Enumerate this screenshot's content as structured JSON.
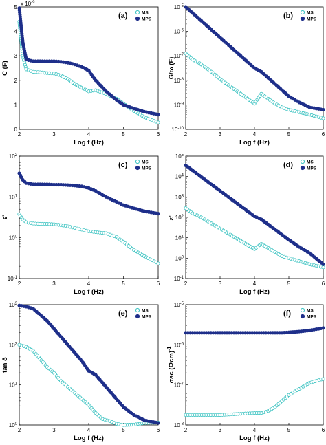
{
  "chart_data": [
    {
      "panel": "(a)",
      "type": "scatter",
      "xlabel": "Log f (Hz)",
      "ylabel": "C (F)",
      "yscale": "linear",
      "multiplier": "x 10^-9",
      "xlim": [
        2,
        6
      ],
      "ylim": [
        0,
        5
      ],
      "xticks": [
        "2",
        "3",
        "4",
        "5",
        "6"
      ],
      "yticks": [
        "0",
        "1",
        "2",
        "3",
        "4",
        "5"
      ],
      "legend": "top-right",
      "series": [
        {
          "name": "MS",
          "marker": "open-circle",
          "color": "#39c2c0",
          "points": [
            [
              2.0,
              4.4
            ],
            [
              2.1,
              3.0
            ],
            [
              2.2,
              2.45
            ],
            [
              2.4,
              2.35
            ],
            [
              2.6,
              2.33
            ],
            [
              2.8,
              2.3
            ],
            [
              3.0,
              2.28
            ],
            [
              3.2,
              2.2
            ],
            [
              3.4,
              2.05
            ],
            [
              3.6,
              1.85
            ],
            [
              3.8,
              1.7
            ],
            [
              4.0,
              1.55
            ],
            [
              4.2,
              1.6
            ],
            [
              4.5,
              1.45
            ],
            [
              4.8,
              1.25
            ],
            [
              5.0,
              1.05
            ],
            [
              5.3,
              0.75
            ],
            [
              5.6,
              0.5
            ],
            [
              6.0,
              0.28
            ]
          ]
        },
        {
          "name": "MPS",
          "marker": "filled-circle",
          "color": "#1e2f8a",
          "points": [
            [
              2.0,
              4.95
            ],
            [
              2.1,
              3.55
            ],
            [
              2.2,
              2.85
            ],
            [
              2.4,
              2.78
            ],
            [
              2.6,
              2.78
            ],
            [
              2.8,
              2.78
            ],
            [
              3.0,
              2.78
            ],
            [
              3.2,
              2.76
            ],
            [
              3.4,
              2.72
            ],
            [
              3.6,
              2.65
            ],
            [
              3.8,
              2.55
            ],
            [
              4.0,
              2.4
            ],
            [
              4.2,
              2.0
            ],
            [
              4.5,
              1.55
            ],
            [
              4.8,
              1.2
            ],
            [
              5.0,
              1.0
            ],
            [
              5.3,
              0.85
            ],
            [
              5.6,
              0.72
            ],
            [
              6.0,
              0.6
            ]
          ]
        }
      ]
    },
    {
      "panel": "(b)",
      "type": "scatter",
      "xlabel": "Log f (Hz)",
      "ylabel": "G/ω (F)",
      "yscale": "log",
      "xlim": [
        2,
        6
      ],
      "ylim": [
        -10,
        -5
      ],
      "xticks": [
        "2",
        "3",
        "4",
        "5",
        "6"
      ],
      "yticks": [
        "10^-10",
        "10^-9",
        "10^-8",
        "10^-7",
        "10^-6",
        "10^-5"
      ],
      "legend": "top-right",
      "series": [
        {
          "name": "MS",
          "marker": "open-circle",
          "color": "#39c2c0",
          "points": [
            [
              2.0,
              -6.9
            ],
            [
              2.2,
              -7.15
            ],
            [
              2.4,
              -7.3
            ],
            [
              2.6,
              -7.5
            ],
            [
              2.8,
              -7.7
            ],
            [
              3.0,
              -7.95
            ],
            [
              3.2,
              -8.15
            ],
            [
              3.4,
              -8.35
            ],
            [
              3.6,
              -8.55
            ],
            [
              3.8,
              -8.75
            ],
            [
              4.0,
              -8.95
            ],
            [
              4.2,
              -8.55
            ],
            [
              4.4,
              -8.75
            ],
            [
              4.6,
              -8.95
            ],
            [
              4.8,
              -9.1
            ],
            [
              5.0,
              -9.2
            ],
            [
              5.3,
              -9.3
            ],
            [
              5.6,
              -9.4
            ],
            [
              6.0,
              -9.55
            ]
          ]
        },
        {
          "name": "MPS",
          "marker": "filled-circle",
          "color": "#1e2f8a",
          "points": [
            [
              2.0,
              -5.0
            ],
            [
              2.2,
              -5.25
            ],
            [
              2.4,
              -5.5
            ],
            [
              2.6,
              -5.75
            ],
            [
              2.8,
              -6.0
            ],
            [
              3.0,
              -6.25
            ],
            [
              3.2,
              -6.5
            ],
            [
              3.4,
              -6.75
            ],
            [
              3.6,
              -7.0
            ],
            [
              3.8,
              -7.25
            ],
            [
              4.0,
              -7.5
            ],
            [
              4.2,
              -7.65
            ],
            [
              4.4,
              -7.9
            ],
            [
              4.6,
              -8.15
            ],
            [
              4.8,
              -8.4
            ],
            [
              5.0,
              -8.65
            ],
            [
              5.3,
              -8.9
            ],
            [
              5.6,
              -9.1
            ],
            [
              6.0,
              -9.2
            ]
          ]
        }
      ]
    },
    {
      "panel": "(c)",
      "type": "scatter",
      "xlabel": "Log f (Hz)",
      "ylabel": "ε'",
      "yscale": "log",
      "xlim": [
        2,
        6
      ],
      "ylim": [
        -1,
        2
      ],
      "xticks": [
        "2",
        "3",
        "4",
        "5",
        "6"
      ],
      "yticks": [
        "10^-1",
        "10^0",
        "10^1",
        "10^2"
      ],
      "legend": "top-right",
      "series": [
        {
          "name": "MS",
          "marker": "open-circle",
          "color": "#39c2c0",
          "points": [
            [
              2.0,
              0.58
            ],
            [
              2.1,
              0.45
            ],
            [
              2.2,
              0.38
            ],
            [
              2.4,
              0.35
            ],
            [
              2.6,
              0.34
            ],
            [
              2.8,
              0.34
            ],
            [
              3.0,
              0.33
            ],
            [
              3.2,
              0.31
            ],
            [
              3.4,
              0.28
            ],
            [
              3.6,
              0.24
            ],
            [
              3.8,
              0.2
            ],
            [
              4.0,
              0.16
            ],
            [
              4.2,
              0.14
            ],
            [
              4.5,
              0.11
            ],
            [
              4.8,
              0.02
            ],
            [
              5.0,
              -0.1
            ],
            [
              5.3,
              -0.3
            ],
            [
              5.6,
              -0.45
            ],
            [
              6.0,
              -0.63
            ]
          ]
        },
        {
          "name": "MPS",
          "marker": "filled-circle",
          "color": "#1e2f8a",
          "points": [
            [
              2.0,
              1.58
            ],
            [
              2.1,
              1.42
            ],
            [
              2.2,
              1.34
            ],
            [
              2.4,
              1.31
            ],
            [
              2.6,
              1.31
            ],
            [
              2.8,
              1.31
            ],
            [
              3.0,
              1.3
            ],
            [
              3.2,
              1.3
            ],
            [
              3.4,
              1.29
            ],
            [
              3.6,
              1.28
            ],
            [
              3.8,
              1.26
            ],
            [
              4.0,
              1.22
            ],
            [
              4.2,
              1.15
            ],
            [
              4.5,
              1.0
            ],
            [
              4.8,
              0.88
            ],
            [
              5.0,
              0.8
            ],
            [
              5.3,
              0.72
            ],
            [
              5.6,
              0.65
            ],
            [
              6.0,
              0.59
            ]
          ]
        }
      ]
    },
    {
      "panel": "(d)",
      "type": "scatter",
      "xlabel": "Log f (Hz)",
      "ylabel": "ε''",
      "yscale": "log",
      "xlim": [
        2,
        6
      ],
      "ylim": [
        -1,
        5
      ],
      "xticks": [
        "2",
        "3",
        "4",
        "5",
        "6"
      ],
      "yticks": [
        "10^-1",
        "10^0",
        "10^1",
        "10^2",
        "10^3",
        "10^4",
        "10^5"
      ],
      "legend": "top-right",
      "series": [
        {
          "name": "MS",
          "marker": "open-circle",
          "color": "#39c2c0",
          "points": [
            [
              2.0,
              2.45
            ],
            [
              2.2,
              2.2
            ],
            [
              2.4,
              2.05
            ],
            [
              2.6,
              1.85
            ],
            [
              2.8,
              1.65
            ],
            [
              3.0,
              1.45
            ],
            [
              3.2,
              1.25
            ],
            [
              3.4,
              1.05
            ],
            [
              3.6,
              0.85
            ],
            [
              3.8,
              0.65
            ],
            [
              4.0,
              0.45
            ],
            [
              4.2,
              0.7
            ],
            [
              4.4,
              0.5
            ],
            [
              4.6,
              0.3
            ],
            [
              4.8,
              0.1
            ],
            [
              5.0,
              0.0
            ],
            [
              5.3,
              -0.15
            ],
            [
              5.6,
              -0.3
            ],
            [
              6.0,
              -0.45
            ]
          ]
        },
        {
          "name": "MPS",
          "marker": "filled-circle",
          "color": "#1e2f8a",
          "points": [
            [
              2.0,
              4.55
            ],
            [
              2.2,
              4.3
            ],
            [
              2.4,
              4.05
            ],
            [
              2.6,
              3.8
            ],
            [
              2.8,
              3.55
            ],
            [
              3.0,
              3.3
            ],
            [
              3.2,
              3.05
            ],
            [
              3.4,
              2.8
            ],
            [
              3.6,
              2.55
            ],
            [
              3.8,
              2.3
            ],
            [
              4.0,
              2.05
            ],
            [
              4.2,
              1.9
            ],
            [
              4.4,
              1.65
            ],
            [
              4.6,
              1.4
            ],
            [
              4.8,
              1.15
            ],
            [
              5.0,
              0.9
            ],
            [
              5.3,
              0.55
            ],
            [
              5.6,
              0.25
            ],
            [
              6.0,
              -0.3
            ]
          ]
        }
      ]
    },
    {
      "panel": "(e)",
      "type": "scatter",
      "xlabel": "Log f (Hz)",
      "ylabel": "tan δ",
      "yscale": "log",
      "xlim": [
        2,
        6
      ],
      "ylim": [
        0,
        3
      ],
      "xticks": [
        "2",
        "3",
        "4",
        "5",
        "6"
      ],
      "yticks": [
        "10^0",
        "10^1",
        "10^2",
        "10^3"
      ],
      "legend": "top-right",
      "series": [
        {
          "name": "MS",
          "marker": "open-circle",
          "color": "#39c2c0",
          "points": [
            [
              2.0,
              2.0
            ],
            [
              2.2,
              1.95
            ],
            [
              2.4,
              1.85
            ],
            [
              2.6,
              1.65
            ],
            [
              2.8,
              1.45
            ],
            [
              3.0,
              1.3
            ],
            [
              3.2,
              1.1
            ],
            [
              3.4,
              0.95
            ],
            [
              3.6,
              0.8
            ],
            [
              3.8,
              0.65
            ],
            [
              4.0,
              0.5
            ],
            [
              4.2,
              0.3
            ],
            [
              4.4,
              0.15
            ],
            [
              4.6,
              0.1
            ],
            [
              4.8,
              0.03
            ],
            [
              5.0,
              0.0
            ],
            [
              5.3,
              0.01
            ],
            [
              5.6,
              0.05
            ],
            [
              6.0,
              0.06
            ]
          ]
        },
        {
          "name": "MPS",
          "marker": "filled-circle",
          "color": "#1e2f8a",
          "points": [
            [
              2.0,
              2.98
            ],
            [
              2.2,
              2.95
            ],
            [
              2.4,
              2.9
            ],
            [
              2.6,
              2.75
            ],
            [
              2.8,
              2.6
            ],
            [
              3.0,
              2.4
            ],
            [
              3.2,
              2.2
            ],
            [
              3.4,
              2.0
            ],
            [
              3.6,
              1.8
            ],
            [
              3.8,
              1.6
            ],
            [
              4.0,
              1.35
            ],
            [
              4.2,
              1.25
            ],
            [
              4.4,
              1.05
            ],
            [
              4.6,
              0.85
            ],
            [
              4.8,
              0.65
            ],
            [
              5.0,
              0.45
            ],
            [
              5.3,
              0.25
            ],
            [
              5.6,
              0.12
            ],
            [
              6.0,
              0.05
            ]
          ]
        }
      ]
    },
    {
      "panel": "(f)",
      "type": "scatter",
      "xlabel": "Log f (Hz)",
      "ylabel": "σac (Ωcm)^-1",
      "yscale": "log",
      "xlim": [
        2,
        6
      ],
      "ylim": [
        -8,
        -5
      ],
      "xticks": [
        "2",
        "3",
        "4",
        "5",
        "6"
      ],
      "yticks": [
        "10^-8",
        "10^-7",
        "10^-6",
        "10^-5"
      ],
      "legend": "top-right",
      "series": [
        {
          "name": "MS",
          "marker": "open-circle",
          "color": "#39c2c0",
          "points": [
            [
              2.0,
              -7.75
            ],
            [
              2.2,
              -7.75
            ],
            [
              2.4,
              -7.75
            ],
            [
              2.6,
              -7.75
            ],
            [
              2.8,
              -7.75
            ],
            [
              3.0,
              -7.75
            ],
            [
              3.2,
              -7.74
            ],
            [
              3.4,
              -7.73
            ],
            [
              3.6,
              -7.72
            ],
            [
              3.8,
              -7.71
            ],
            [
              4.0,
              -7.7
            ],
            [
              4.2,
              -7.7
            ],
            [
              4.4,
              -7.65
            ],
            [
              4.6,
              -7.55
            ],
            [
              4.8,
              -7.4
            ],
            [
              5.0,
              -7.25
            ],
            [
              5.3,
              -7.1
            ],
            [
              5.6,
              -6.95
            ],
            [
              6.0,
              -6.85
            ]
          ]
        },
        {
          "name": "MPS",
          "marker": "filled-circle",
          "color": "#1e2f8a",
          "points": [
            [
              2.0,
              -5.7
            ],
            [
              2.2,
              -5.7
            ],
            [
              2.4,
              -5.7
            ],
            [
              2.6,
              -5.7
            ],
            [
              2.8,
              -5.7
            ],
            [
              3.0,
              -5.7
            ],
            [
              3.2,
              -5.7
            ],
            [
              3.4,
              -5.7
            ],
            [
              3.6,
              -5.7
            ],
            [
              3.8,
              -5.7
            ],
            [
              4.0,
              -5.7
            ],
            [
              4.2,
              -5.7
            ],
            [
              4.4,
              -5.7
            ],
            [
              4.6,
              -5.7
            ],
            [
              4.8,
              -5.7
            ],
            [
              5.0,
              -5.69
            ],
            [
              5.3,
              -5.67
            ],
            [
              5.6,
              -5.64
            ],
            [
              6.0,
              -5.58
            ]
          ]
        }
      ]
    }
  ]
}
